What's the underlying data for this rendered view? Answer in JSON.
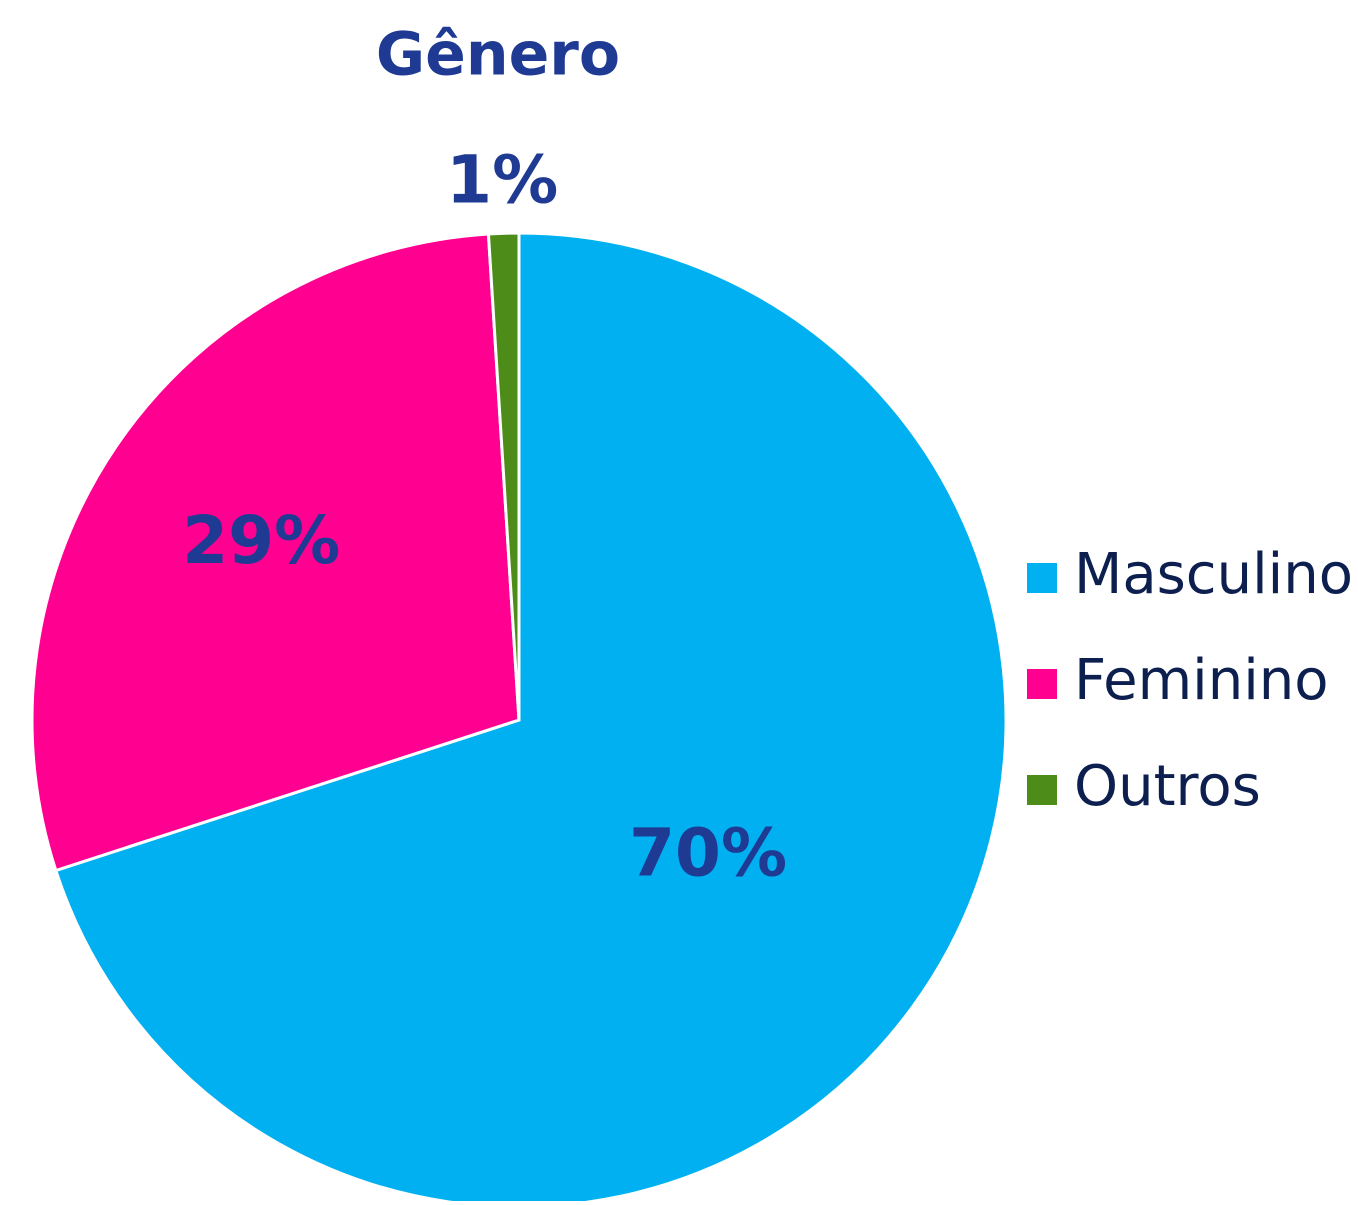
{
  "chart_data": {
    "type": "pie",
    "title": "Gênero",
    "categories": [
      "Masculino",
      "Feminino",
      "Outros"
    ],
    "values": [
      70,
      29,
      1
    ],
    "value_labels": [
      "70%",
      "29%",
      "1%"
    ],
    "colors": [
      "#00b0f0",
      "#ff0090",
      "#4e8c1a"
    ],
    "legend": "right"
  }
}
